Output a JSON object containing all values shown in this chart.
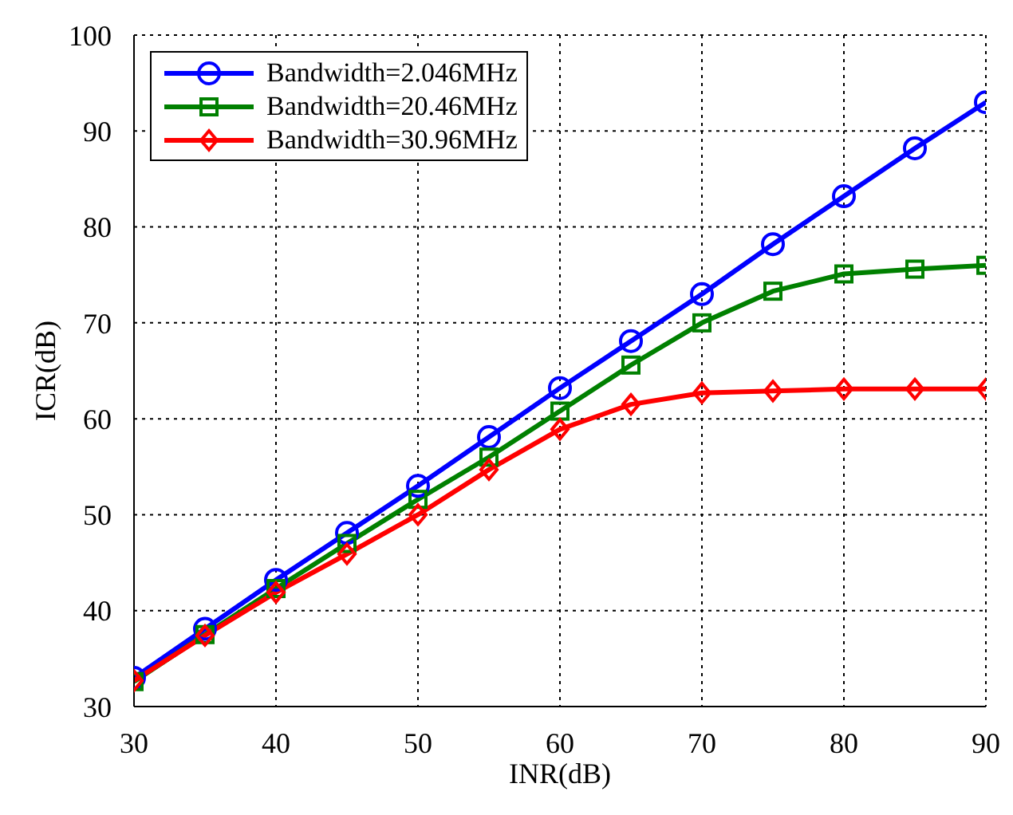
{
  "chart_data": {
    "type": "line",
    "xlabel": "INR(dB)",
    "ylabel": "ICR(dB)",
    "x": [
      30,
      35,
      40,
      45,
      50,
      55,
      60,
      65,
      70,
      75,
      80,
      85,
      90
    ],
    "series": [
      {
        "name": "Bandwidth=2.046MHz",
        "color": "#0000ff",
        "marker": "circle",
        "values": [
          33,
          38.1,
          43.2,
          48.1,
          53,
          58.1,
          63.2,
          68.1,
          73,
          78.2,
          83.2,
          88.2,
          93
        ]
      },
      {
        "name": "Bandwidth=20.46MHz",
        "color": "#008000",
        "marker": "square",
        "values": [
          32.6,
          37.5,
          42.3,
          47,
          51.6,
          56,
          60.8,
          65.6,
          70,
          73.3,
          75.1,
          75.6,
          76
        ]
      },
      {
        "name": "Bandwidth=30.96MHz",
        "color": "#ff0000",
        "marker": "diamond",
        "values": [
          32.7,
          37.4,
          41.9,
          45.9,
          50,
          54.7,
          58.9,
          61.5,
          62.7,
          62.9,
          63.1,
          63.1,
          63.1
        ]
      }
    ],
    "xlim": [
      30,
      90
    ],
    "xticks": [
      30,
      40,
      50,
      60,
      70,
      80,
      90
    ],
    "ylim": [
      30,
      100
    ],
    "yticks": [
      30,
      40,
      50,
      60,
      70,
      80,
      90,
      100
    ],
    "grid": true,
    "legend": "top left",
    "line_style": "solid"
  }
}
